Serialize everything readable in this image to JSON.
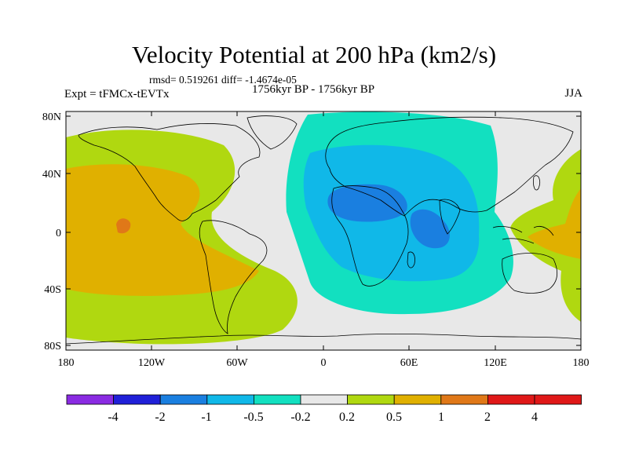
{
  "title": "Velocity Potential at 200 hPa (km2/s)",
  "stats_line": "rmsd= 0.519261 diff= -1.4674e-05",
  "left_label": "Expt = tFMCx-tEVTx",
  "center_label": "1756kyr BP - 1756kyr BP",
  "right_label": "JJA",
  "lat_ticks": [
    "80N",
    "40N",
    "0",
    "40S",
    "80S"
  ],
  "lon_ticks": [
    "180",
    "120W",
    "60W",
    "0",
    "60E",
    "120E",
    "180"
  ],
  "colorbar": {
    "labels": [
      "-4",
      "-2",
      "-1",
      "-0.5",
      "-0.2",
      "0.2",
      "0.5",
      "1",
      "2",
      "4"
    ],
    "colors": [
      "#8a2be2",
      "#2020d8",
      "#1a7fe0",
      "#10b8e8",
      "#12e0c0",
      "#e8e8e8",
      "#b0d810",
      "#e0b000",
      "#e07818",
      "#e01818"
    ]
  },
  "fill_colors": {
    "neutral": "#e8e8e8",
    "pos_weak": "#b0d810",
    "pos_mid": "#e0b000",
    "pos_strong": "#e07818",
    "neg_weak": "#12e0c0",
    "neg_mid": "#10b8e8",
    "neg_strong": "#1a7fe0"
  }
}
